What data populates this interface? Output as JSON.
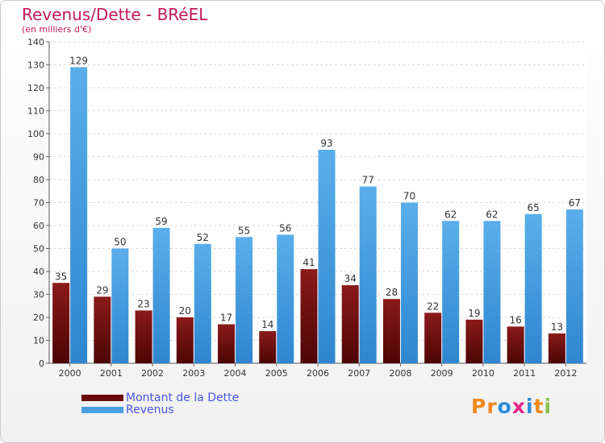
{
  "header": {
    "title": "Revenus/Dette - BRéEL",
    "subtitle": "(en milliers d'€)"
  },
  "legend": {
    "items": [
      {
        "label": "Montant de la Dette",
        "color": "#6b0a0a"
      },
      {
        "label": "Revenus",
        "color": "#4a9fe2"
      }
    ]
  },
  "logo": {
    "letters": [
      "P",
      "r",
      "o",
      "x",
      "i",
      "t",
      "i"
    ],
    "colors": [
      "#f08a1c",
      "#f08a1c",
      "#2e8bd8",
      "#e32a8a",
      "#2e8bd8",
      "#f08a1c",
      "#8bc34a"
    ]
  },
  "chart_data": {
    "type": "bar",
    "title": "Revenus/Dette - BRéEL",
    "subtitle": "(en milliers d'€)",
    "categories": [
      "2000",
      "2001",
      "2002",
      "2003",
      "2004",
      "2005",
      "2006",
      "2007",
      "2008",
      "2009",
      "2010",
      "2011",
      "2012"
    ],
    "series": [
      {
        "name": "Montant de la Dette",
        "values": [
          35,
          29,
          23,
          20,
          17,
          14,
          41,
          34,
          28,
          22,
          19,
          16,
          13
        ],
        "color": "#6b0a0a"
      },
      {
        "name": "Revenus",
        "values": [
          129,
          50,
          59,
          52,
          55,
          56,
          93,
          77,
          70,
          62,
          62,
          65,
          67
        ],
        "color": "#4a9fe2"
      }
    ],
    "ylim": [
      0,
      140
    ],
    "yticks": [
      0,
      10,
      20,
      30,
      40,
      50,
      60,
      70,
      80,
      90,
      100,
      110,
      120,
      130,
      140
    ],
    "grid": true,
    "legend_position": "bottom-left"
  }
}
